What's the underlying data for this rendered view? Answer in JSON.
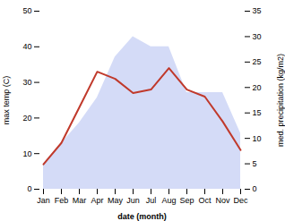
{
  "chart_data": {
    "type": "line",
    "xlabel": "date (month)",
    "ylabel": "max temp (C)",
    "y2label": "med. precipitation (kg/m2)",
    "categories": [
      "Jan",
      "Feb",
      "Mar",
      "Apr",
      "May",
      "Jun",
      "Jul",
      "Aug",
      "Sep",
      "Oct",
      "Nov",
      "Dec"
    ],
    "ylim": [
      0,
      50
    ],
    "yticks": [
      0,
      10,
      20,
      30,
      40,
      50
    ],
    "y2lim": [
      0,
      35
    ],
    "y2ticks": [
      0,
      5,
      10,
      15,
      20,
      25,
      30,
      35
    ],
    "grid": false,
    "series": [
      {
        "type": "area",
        "color": "#b0bef0",
        "axis": "y2",
        "values": [
          5,
          9,
          13,
          18,
          26,
          30,
          28,
          28,
          19,
          19,
          19,
          11
        ]
      },
      {
        "type": "line",
        "color": "#c0392b",
        "values": [
          7,
          13,
          23,
          33,
          31,
          27,
          28,
          34,
          28,
          26,
          19,
          11
        ]
      }
    ]
  }
}
